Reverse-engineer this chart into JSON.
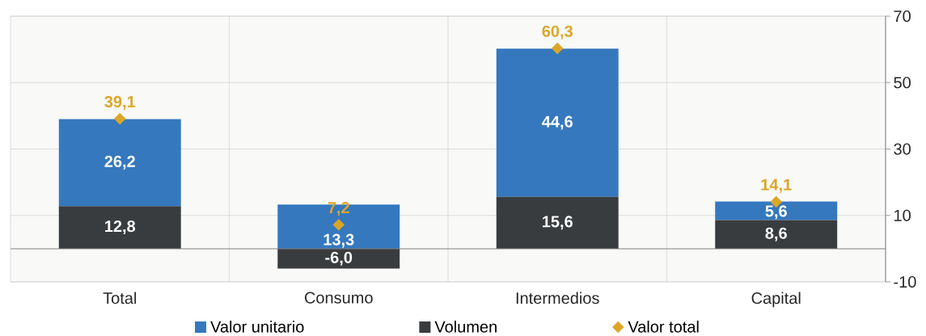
{
  "chart_data": {
    "type": "bar",
    "stacked": true,
    "categories": [
      "Total",
      "Consumo",
      "Intermedios",
      "Capital"
    ],
    "series": [
      {
        "name": "Volumen",
        "color": "#393c3f",
        "values": [
          12.8,
          -6.0,
          15.6,
          8.6
        ],
        "value_labels": [
          "12,8",
          "-6,0",
          "15,6",
          "8,6"
        ]
      },
      {
        "name": "Valor unitario",
        "color": "#3578be",
        "values": [
          26.2,
          13.3,
          44.6,
          5.6
        ],
        "value_labels": [
          "26,2",
          "13,3",
          "44,6",
          "5,6"
        ]
      },
      {
        "name": "Valor total",
        "type": "scatter",
        "marker": "diamond",
        "color": "#dba628",
        "values": [
          39.1,
          7.2,
          60.3,
          14.1
        ],
        "value_labels": [
          "39,1",
          "7,2",
          "60,3",
          "14,1"
        ]
      }
    ],
    "ylim": [
      -10,
      70
    ],
    "yticks": [
      -10,
      10,
      30,
      50,
      70
    ],
    "grid": true,
    "legend": "bottom"
  }
}
